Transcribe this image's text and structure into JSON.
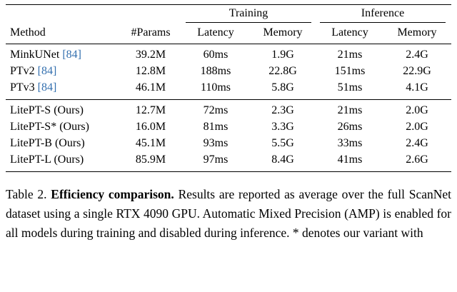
{
  "colors": {
    "citation": "#3470af"
  },
  "table": {
    "group_headers": {
      "training": "Training",
      "inference": "Inference"
    },
    "columns": {
      "method": "Method",
      "params": "#Params",
      "latency": "Latency",
      "memory": "Memory"
    },
    "rows_baselines": [
      {
        "method": "MinkUNet",
        "cite": "[84]",
        "params": "39.2M",
        "train_latency": "60ms",
        "train_memory": "1.9G",
        "inf_latency": "21ms",
        "inf_memory": "2.4G"
      },
      {
        "method": "PTv2",
        "cite": "[84]",
        "params": "12.8M",
        "train_latency": "188ms",
        "train_memory": "22.8G",
        "inf_latency": "151ms",
        "inf_memory": "22.9G"
      },
      {
        "method": "PTv3",
        "cite": "[84]",
        "params": "46.1M",
        "train_latency": "110ms",
        "train_memory": "5.8G",
        "inf_latency": "51ms",
        "inf_memory": "4.1G"
      }
    ],
    "rows_ours": [
      {
        "method": "LitePT-S (Ours)",
        "cite": "",
        "params": "12.7M",
        "train_latency": "72ms",
        "train_memory": "2.3G",
        "inf_latency": "21ms",
        "inf_memory": "2.0G"
      },
      {
        "method": "LitePT-S* (Ours)",
        "cite": "",
        "params": "16.0M",
        "train_latency": "81ms",
        "train_memory": "3.3G",
        "inf_latency": "26ms",
        "inf_memory": "2.0G"
      },
      {
        "method": "LitePT-B (Ours)",
        "cite": "",
        "params": "45.1M",
        "train_latency": "93ms",
        "train_memory": "5.5G",
        "inf_latency": "33ms",
        "inf_memory": "2.4G"
      },
      {
        "method": "LitePT-L (Ours)",
        "cite": "",
        "params": "85.9M",
        "train_latency": "97ms",
        "train_memory": "8.4G",
        "inf_latency": "41ms",
        "inf_memory": "2.6G"
      }
    ]
  },
  "caption": {
    "label": "Table 2. ",
    "bold": "Efficiency comparison.",
    "text": " Results are reported as average over the full ScanNet dataset using a single RTX 4090 GPU. Automatic Mixed Precision (AMP) is enabled for all models during training and disabled during inference. * denotes our variant with"
  }
}
